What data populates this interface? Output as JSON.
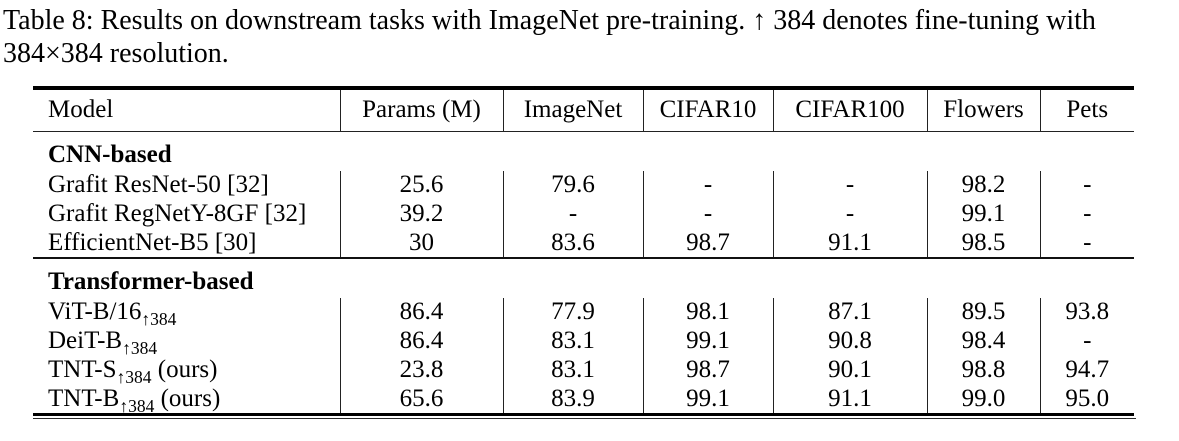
{
  "caption": {
    "line1": "Table 8: Results on downstream tasks with ImageNet pre-training. ↑ 384 denotes fine-tuning with",
    "line2": "384×384 resolution."
  },
  "table": {
    "columns": [
      "Model",
      "Params (M)",
      "ImageNet",
      "CIFAR10",
      "CIFAR100",
      "Flowers",
      "Pets"
    ],
    "sections": [
      {
        "label": "CNN-based",
        "rows": [
          {
            "base": "Grafit ResNet-50 [32]",
            "sub": "",
            "suffix": "",
            "values": [
              "25.6",
              "79.6",
              "-",
              "-",
              "98.2",
              "-"
            ]
          },
          {
            "base": "Grafit RegNetY-8GF [32]",
            "sub": "",
            "suffix": "",
            "values": [
              "39.2",
              "-",
              "-",
              "-",
              "99.1",
              "-"
            ]
          },
          {
            "base": "EfficientNet-B5 [30]",
            "sub": "",
            "suffix": "",
            "values": [
              "30",
              "83.6",
              "98.7",
              "91.1",
              "98.5",
              "-"
            ]
          }
        ]
      },
      {
        "label": "Transformer-based",
        "rows": [
          {
            "base": "ViT-B/16",
            "sub": "↑384",
            "suffix": "",
            "values": [
              "86.4",
              "77.9",
              "98.1",
              "87.1",
              "89.5",
              "93.8"
            ]
          },
          {
            "base": "DeiT-B",
            "sub": "↑384",
            "suffix": "",
            "values": [
              "86.4",
              "83.1",
              "99.1",
              "90.8",
              "98.4",
              "-"
            ]
          },
          {
            "base": "TNT-S",
            "sub": "↑384",
            "suffix": " (ours)",
            "values": [
              "23.8",
              "83.1",
              "98.7",
              "90.1",
              "98.8",
              "94.7"
            ]
          },
          {
            "base": "TNT-B",
            "sub": "↑384",
            "suffix": " (ours)",
            "values": [
              "65.6",
              "83.9",
              "99.1",
              "91.1",
              "99.0",
              "95.0"
            ]
          }
        ]
      }
    ]
  }
}
